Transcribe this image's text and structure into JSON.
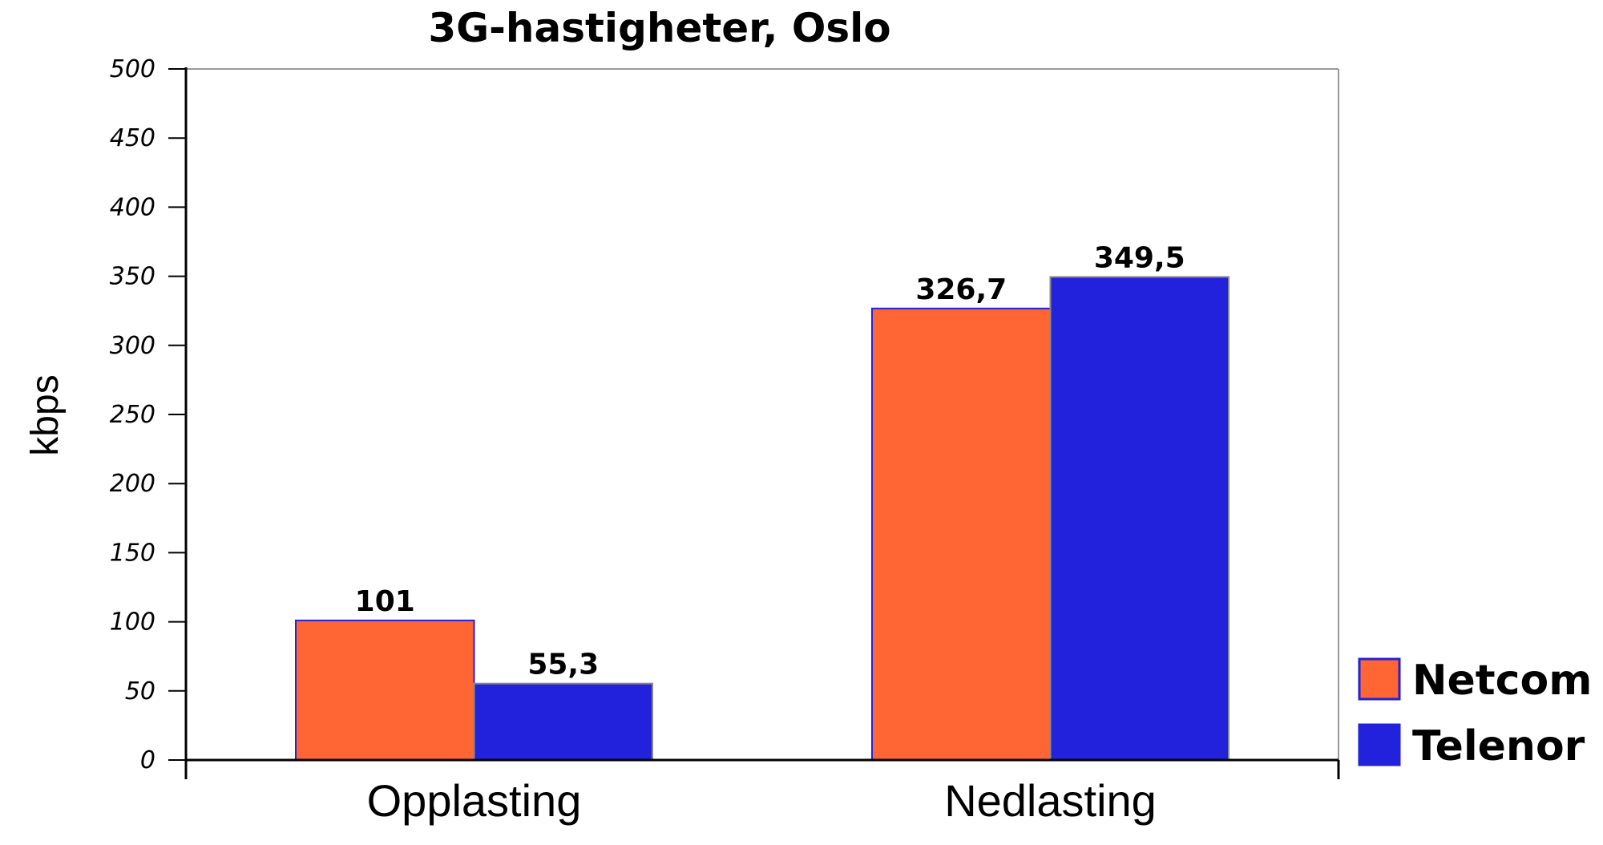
{
  "chart_data": {
    "type": "bar",
    "title": "3G-hastigheter, Oslo",
    "xlabel": "",
    "ylabel": "kbps",
    "ylim": [
      0,
      500
    ],
    "yticks": [
      0,
      50,
      100,
      150,
      200,
      250,
      300,
      350,
      400,
      450,
      500
    ],
    "categories": [
      "Opplasting",
      "Nedlasting"
    ],
    "series": [
      {
        "name": "Netcom",
        "values": [
          101,
          326.7
        ],
        "labels": [
          "101",
          "326,7"
        ],
        "color": "#ff6633"
      },
      {
        "name": "Telenor",
        "values": [
          55.3,
          349.5
        ],
        "labels": [
          "55,3",
          "349,5"
        ],
        "color": "#2222dd"
      }
    ],
    "grid": false,
    "legend": "bottom-right"
  }
}
